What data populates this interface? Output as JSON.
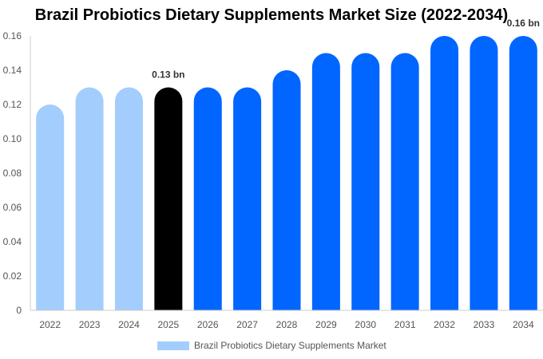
{
  "chart_data": {
    "type": "bar",
    "title": "Brazil Probiotics Dietary Supplements Market Size (2022-2034)",
    "categories": [
      "2022",
      "2023",
      "2024",
      "2025",
      "2026",
      "2027",
      "2028",
      "2029",
      "2030",
      "2031",
      "2032",
      "2033",
      "2034"
    ],
    "series": [
      {
        "name": "Brazil Probiotics Dietary Supplements Market",
        "values": [
          0.12,
          0.13,
          0.13,
          0.13,
          0.13,
          0.13,
          0.14,
          0.15,
          0.15,
          0.15,
          0.16,
          0.16,
          0.16
        ]
      }
    ],
    "bar_colors": [
      "#a3cdfc",
      "#a3cdfc",
      "#a3cdfc",
      "#000000",
      "#0066ff",
      "#0066ff",
      "#0066ff",
      "#0066ff",
      "#0066ff",
      "#0066ff",
      "#0066ff",
      "#0066ff",
      "#0066ff"
    ],
    "legend_color": "#a3cdfc",
    "data_labels": [
      {
        "category": "2025",
        "text": "0.13 bn"
      },
      {
        "category": "2034",
        "text": "0.16 bn"
      }
    ],
    "yticks": [
      "0",
      "0.02",
      "0.04",
      "0.06",
      "0.08",
      "0.10",
      "0.12",
      "0.14",
      "0.16"
    ],
    "ylim": [
      0,
      0.16
    ],
    "xlabel": "",
    "ylabel": "",
    "grid": false,
    "legend_position": "bottom"
  }
}
